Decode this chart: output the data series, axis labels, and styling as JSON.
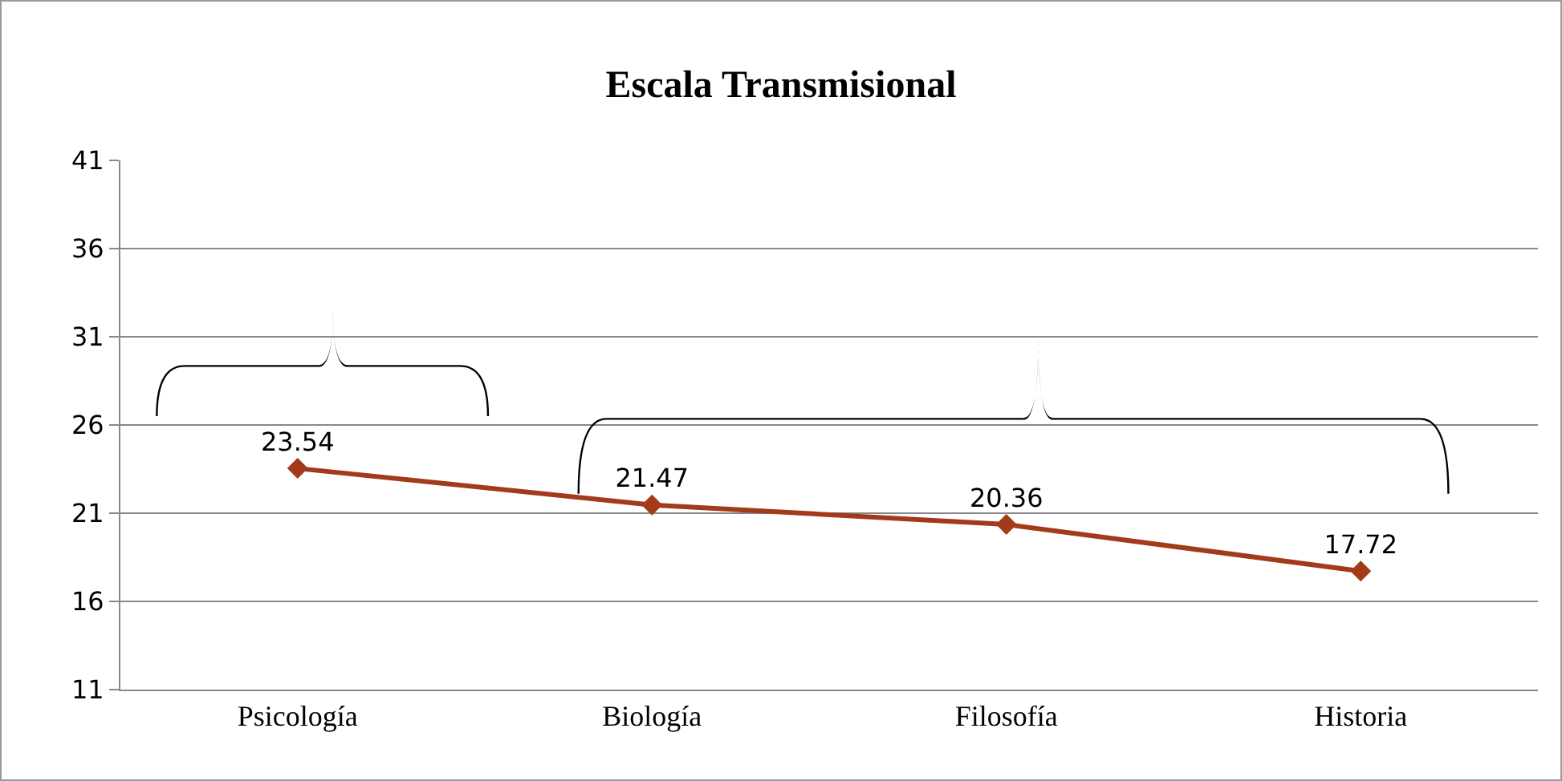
{
  "chart_data": {
    "type": "line",
    "title": "Escala Transmisional",
    "categories": [
      "Psicología",
      "Biología",
      "Filosofía",
      "Historia"
    ],
    "series": [
      {
        "color": "#a33b1b",
        "values": [
          23.54,
          21.47,
          20.36,
          17.72
        ]
      }
    ],
    "ylim": [
      11,
      41
    ],
    "yticks": [
      11,
      16,
      21,
      26,
      31,
      36,
      41
    ],
    "grid": "y",
    "legend": false,
    "marker": "diamond",
    "line_style": "solid",
    "data_labels": true
  }
}
